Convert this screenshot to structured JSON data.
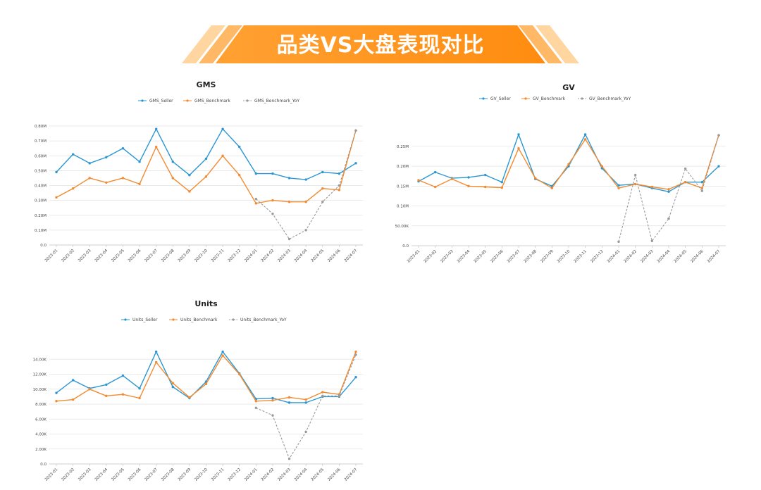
{
  "banner": {
    "title": "品类VS大盘表现对比",
    "color_start": "#ffb347",
    "color_end": "#ff8a00"
  },
  "colors": {
    "seller": "#2b97d1",
    "benchmark": "#f28a30",
    "yoy": "#9a9a9a"
  },
  "chart_data": [
    {
      "id": "gms",
      "type": "line",
      "title": "GMS",
      "legend": [
        "GMS_Seller",
        "GMS_Benchmark",
        "GMS_Benchmark_YoY"
      ],
      "legend_placement": "top-center",
      "grid": true,
      "ylim": [
        0,
        0.8
      ],
      "yticks": [
        "0.0",
        "0.10M",
        "0.20M",
        "0.30M",
        "0.40M",
        "0.50M",
        "0.60M",
        "0.70M",
        "0.80M"
      ],
      "categories": [
        "2023-01",
        "2023-02",
        "2023-03",
        "2023-04",
        "2023-05",
        "2023-06",
        "2023-07",
        "2023-08",
        "2023-09",
        "2023-10",
        "2023-11",
        "2023-12",
        "2024-01",
        "2024-02",
        "2024-03",
        "2024-04",
        "2024-05",
        "2024-06",
        "2024-07"
      ],
      "series": [
        {
          "name": "GMS_Seller",
          "style": "solid",
          "values": [
            0.49,
            0.61,
            0.55,
            0.59,
            0.65,
            0.56,
            0.78,
            0.56,
            0.47,
            0.58,
            0.78,
            0.66,
            0.48,
            0.48,
            0.45,
            0.44,
            0.49,
            0.48,
            0.55
          ]
        },
        {
          "name": "GMS_Benchmark",
          "style": "solid",
          "values": [
            0.32,
            0.38,
            0.45,
            0.42,
            0.45,
            0.41,
            0.66,
            0.45,
            0.36,
            0.46,
            0.6,
            0.47,
            0.28,
            0.3,
            0.29,
            0.29,
            0.38,
            0.37,
            0.77
          ]
        },
        {
          "name": "GMS_Benchmark_YoY",
          "style": "dashed",
          "values": [
            null,
            null,
            null,
            null,
            null,
            null,
            null,
            null,
            null,
            null,
            null,
            null,
            0.31,
            0.21,
            0.04,
            0.1,
            0.29,
            0.4,
            0.77
          ]
        }
      ]
    },
    {
      "id": "gv",
      "type": "line",
      "title": "GV",
      "legend": [
        "GV_Seller",
        "GV_Benchmark",
        "GV_Benchmark_YoY"
      ],
      "legend_placement": "top-center",
      "grid": true,
      "ylim": [
        0,
        0.28
      ],
      "yticks": [
        "0.0",
        "50.00K",
        "0.10M",
        "0.15M",
        "0.20M",
        "0.25M"
      ],
      "categories": [
        "2023-01",
        "2023-02",
        "2023-03",
        "2023-04",
        "2023-05",
        "2023-06",
        "2023-07",
        "2023-08",
        "2023-09",
        "2023-10",
        "2023-11",
        "2023-12",
        "2024-01",
        "2024-02",
        "2024-03",
        "2024-04",
        "2024-05",
        "2024-06",
        "2024-07"
      ],
      "series": [
        {
          "name": "GV_Seller",
          "style": "solid",
          "values": [
            0.162,
            0.185,
            0.17,
            0.172,
            0.178,
            0.16,
            0.28,
            0.168,
            0.15,
            0.2,
            0.28,
            0.195,
            0.152,
            0.155,
            0.145,
            0.136,
            0.16,
            0.16,
            0.2
          ]
        },
        {
          "name": "GV_Benchmark",
          "style": "solid",
          "values": [
            0.165,
            0.148,
            0.168,
            0.15,
            0.148,
            0.146,
            0.245,
            0.17,
            0.145,
            0.205,
            0.268,
            0.2,
            0.145,
            0.155,
            0.148,
            0.142,
            0.16,
            0.145,
            0.278
          ]
        },
        {
          "name": "GV_Benchmark_YoY",
          "style": "dashed",
          "values": [
            null,
            null,
            null,
            null,
            null,
            null,
            null,
            null,
            null,
            null,
            null,
            null,
            0.01,
            0.178,
            0.012,
            0.068,
            0.194,
            0.138,
            0.278
          ]
        }
      ]
    },
    {
      "id": "units",
      "type": "line",
      "title": "Units",
      "legend": [
        "Units_Seller",
        "Units_Benchmark",
        "Units_Benchmark_YoY"
      ],
      "legend_placement": "top-center",
      "grid": true,
      "ylim": [
        0,
        16
      ],
      "yticks": [
        "0.0",
        "2.00K",
        "4.00K",
        "6.00K",
        "8.00K",
        "10.00K",
        "12.00K",
        "14.00K"
      ],
      "categories": [
        "2023-01",
        "2023-02",
        "2023-03",
        "2023-04",
        "2023-05",
        "2023-06",
        "2023-07",
        "2023-08",
        "2023-09",
        "2023-10",
        "2023-11",
        "2023-12",
        "2024-01",
        "2024-02",
        "2024-03",
        "2024-04",
        "2024-05",
        "2024-06",
        "2024-07"
      ],
      "series": [
        {
          "name": "Units_Seller",
          "style": "solid",
          "values": [
            9.5,
            11.2,
            10.1,
            10.6,
            11.8,
            10.1,
            15.0,
            10.3,
            8.8,
            11.0,
            15.0,
            12.1,
            8.7,
            8.8,
            8.2,
            8.2,
            9.0,
            9.0,
            11.6
          ]
        },
        {
          "name": "Units_Benchmark",
          "style": "solid",
          "values": [
            8.4,
            8.6,
            10.0,
            9.1,
            9.3,
            8.8,
            13.6,
            10.8,
            8.9,
            10.7,
            14.5,
            12.0,
            8.4,
            8.5,
            8.9,
            8.6,
            9.6,
            9.3,
            15.0
          ]
        },
        {
          "name": "Units_Benchmark_YoY",
          "style": "dashed",
          "values": [
            null,
            null,
            null,
            null,
            null,
            null,
            null,
            null,
            null,
            null,
            null,
            null,
            7.5,
            6.5,
            0.7,
            4.3,
            9.1,
            9.1,
            14.6
          ]
        }
      ]
    }
  ]
}
